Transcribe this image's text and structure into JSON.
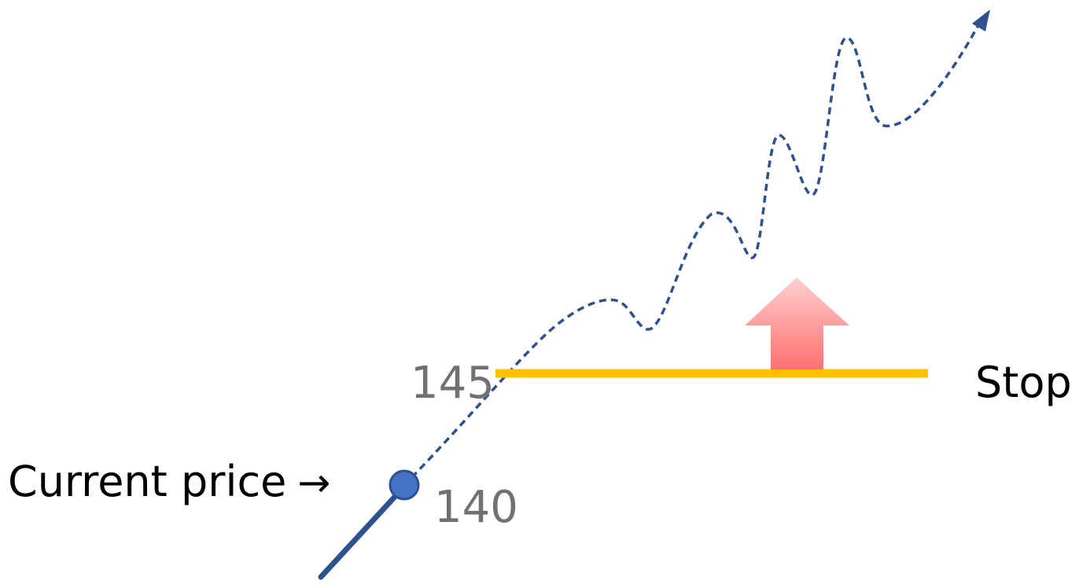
{
  "labels": {
    "stop_level": "145",
    "current_level": "140",
    "stop_text": "Stop",
    "current_text": "Current price",
    "current_arrow": "→"
  },
  "colors": {
    "price_path": "#2F528F",
    "current_marker": "#4472C4",
    "stop_line": "#FFC000",
    "up_arrow_top": "#FFD0D0",
    "up_arrow_bottom": "#FF7070"
  }
}
